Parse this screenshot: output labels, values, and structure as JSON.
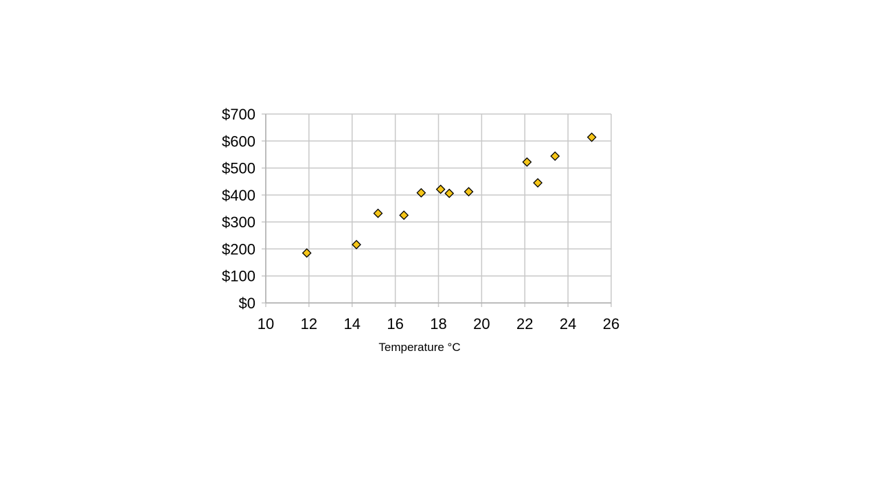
{
  "chart_data": {
    "type": "scatter",
    "title": "",
    "xlabel": "Temperature °C",
    "ylabel": "",
    "xlim": [
      10,
      26
    ],
    "ylim": [
      0,
      700
    ],
    "x_ticks": [
      "10",
      "12",
      "14",
      "16",
      "18",
      "20",
      "22",
      "24",
      "26"
    ],
    "y_ticks": [
      "$0",
      "$100",
      "$200",
      "$300",
      "$400",
      "$500",
      "$600",
      "$700"
    ],
    "grid": true,
    "legend": "none",
    "marker": "diamond",
    "marker_color": "#f5c518",
    "marker_edge_color": "#000000",
    "grid_color": "#c8c8c8",
    "series": [
      {
        "x": [
          11.9,
          14.2,
          15.2,
          16.4,
          17.2,
          18.1,
          18.5,
          19.4,
          22.1,
          22.6,
          23.4,
          25.1
        ],
        "y": [
          185,
          216,
          332,
          325,
          408,
          421,
          406,
          412,
          522,
          445,
          544,
          614
        ]
      }
    ]
  }
}
